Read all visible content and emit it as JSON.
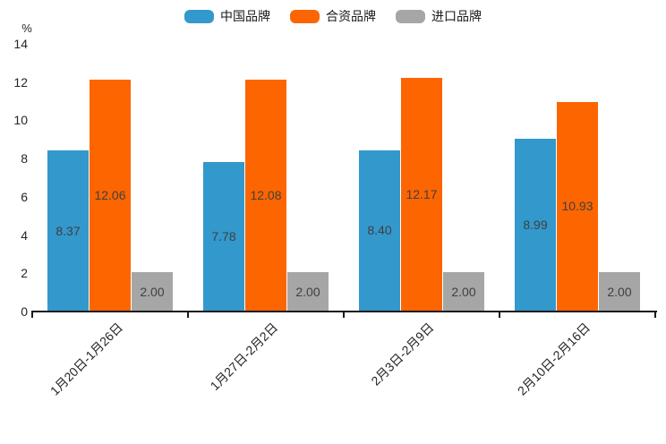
{
  "page": {
    "background": "#ffffff"
  },
  "legend": {
    "items": [
      {
        "label": "中国品牌",
        "color": "#3398cc"
      },
      {
        "label": "合资品牌",
        "color": "#fc6500"
      },
      {
        "label": "进口品牌",
        "color": "#a6a6a6"
      }
    ]
  },
  "chart_data": {
    "type": "bar",
    "title": "",
    "categories": [
      "1月20日-1月26日",
      "1月27日-2月2日",
      "2月3日-2月9日",
      "2月10日-2月16日"
    ],
    "series": [
      {
        "name": "中国品牌",
        "color": "#3398cc",
        "values": [
          8.37,
          7.78,
          8.4,
          8.99
        ]
      },
      {
        "name": "合资品牌",
        "color": "#fc6500",
        "values": [
          12.06,
          12.08,
          12.17,
          10.93
        ]
      },
      {
        "name": "进口品牌",
        "color": "#a6a6a6",
        "values": [
          2.0,
          2.0,
          2.0,
          2.0
        ]
      }
    ],
    "value_labels": [
      [
        "8.37",
        "7.78",
        "8.40",
        "8.99"
      ],
      [
        "12.06",
        "12.08",
        "12.17",
        "10.93"
      ],
      [
        "2.00",
        "2.00",
        "2.00",
        "2.00"
      ]
    ],
    "xlabel": "",
    "ylabel": "%",
    "ylim": [
      0,
      14
    ],
    "yticks": [
      0,
      2,
      4,
      6,
      8,
      10,
      12,
      14
    ],
    "grid": false,
    "legend_position": "top-center",
    "bar_label_color": "#404040",
    "axis_color": "#1a1a1a"
  }
}
